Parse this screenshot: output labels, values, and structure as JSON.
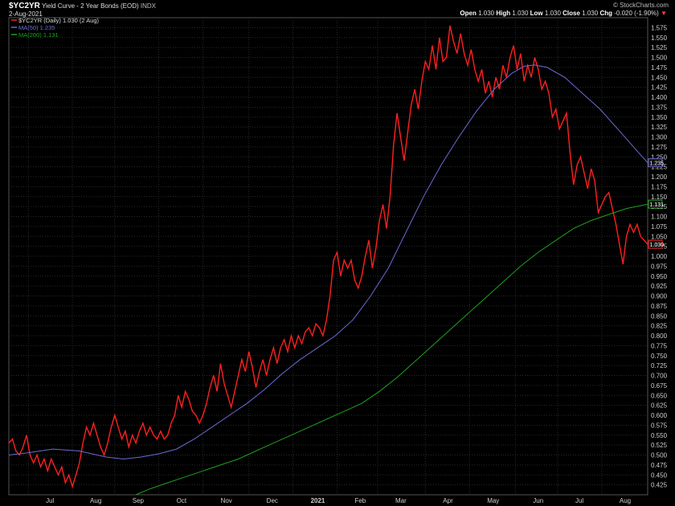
{
  "header": {
    "ticker": "$YC2YR",
    "title": "Yield Curve - 2 Year Bonds (EOD)",
    "exchange": "INDX",
    "date": "2-Aug-2021",
    "credit": "© StockCharts.com",
    "quote": {
      "open_label": "Open",
      "open": "1.030",
      "high_label": "High",
      "high": "1.030",
      "low_label": "Low",
      "low": "1.030",
      "close_label": "Close",
      "close": "1.030",
      "chg_label": "Chg",
      "chg": "-0.020 (-1.90%)",
      "chg_marker": "▼"
    }
  },
  "colors": {
    "price": "#ff2020",
    "ma50": "#6b6bd6",
    "ma200": "#1fa01f",
    "grid": "#2a2a2a",
    "axis_text": "#cfcfcf",
    "chg_negative": "#ff4040"
  },
  "chart_data": {
    "type": "line",
    "ylim": [
      0.4,
      1.6
    ],
    "x_ticks": [
      "Jul",
      "Aug",
      "Sep",
      "Oct",
      "Nov",
      "Dec",
      "2021",
      "Feb",
      "Mar",
      "Apr",
      "May",
      "Jun",
      "Jul",
      "Aug"
    ],
    "y_ticks": [
      "0.425",
      "0.450",
      "0.475",
      "0.500",
      "0.525",
      "0.550",
      "0.575",
      "0.600",
      "0.625",
      "0.650",
      "0.675",
      "0.700",
      "0.725",
      "0.750",
      "0.775",
      "0.800",
      "0.825",
      "0.850",
      "0.875",
      "0.900",
      "0.925",
      "0.950",
      "0.975",
      "1.000",
      "1.025",
      "1.050",
      "1.075",
      "1.100",
      "1.125",
      "1.150",
      "1.175",
      "1.200",
      "1.225",
      "1.250",
      "1.275",
      "1.300",
      "1.325",
      "1.350",
      "1.375",
      "1.400",
      "1.425",
      "1.450",
      "1.475",
      "1.500",
      "1.525",
      "1.550",
      "1.575"
    ],
    "series": [
      {
        "name": "$YC2YR (Daily) 1.030 (2 Aug)",
        "last_label": "1.030",
        "points": [
          [
            0,
            0.53
          ],
          [
            2,
            0.54
          ],
          [
            4,
            0.51
          ],
          [
            6,
            0.5
          ],
          [
            8,
            0.52
          ],
          [
            10,
            0.55
          ],
          [
            12,
            0.5
          ],
          [
            14,
            0.48
          ],
          [
            16,
            0.5
          ],
          [
            18,
            0.47
          ],
          [
            20,
            0.49
          ],
          [
            22,
            0.46
          ],
          [
            24,
            0.49
          ],
          [
            26,
            0.47
          ],
          [
            28,
            0.45
          ],
          [
            30,
            0.47
          ],
          [
            32,
            0.43
          ],
          [
            34,
            0.45
          ],
          [
            36,
            0.42
          ],
          [
            38,
            0.45
          ],
          [
            40,
            0.48
          ],
          [
            42,
            0.53
          ],
          [
            44,
            0.57
          ],
          [
            46,
            0.55
          ],
          [
            48,
            0.58
          ],
          [
            50,
            0.55
          ],
          [
            52,
            0.52
          ],
          [
            54,
            0.5
          ],
          [
            56,
            0.53
          ],
          [
            58,
            0.57
          ],
          [
            60,
            0.6
          ],
          [
            62,
            0.57
          ],
          [
            64,
            0.54
          ],
          [
            66,
            0.56
          ],
          [
            68,
            0.52
          ],
          [
            70,
            0.55
          ],
          [
            72,
            0.53
          ],
          [
            74,
            0.56
          ],
          [
            76,
            0.58
          ],
          [
            78,
            0.55
          ],
          [
            80,
            0.57
          ],
          [
            82,
            0.55
          ],
          [
            84,
            0.54
          ],
          [
            86,
            0.56
          ],
          [
            88,
            0.54
          ],
          [
            90,
            0.55
          ],
          [
            92,
            0.58
          ],
          [
            94,
            0.6
          ],
          [
            96,
            0.65
          ],
          [
            98,
            0.62
          ],
          [
            100,
            0.66
          ],
          [
            102,
            0.64
          ],
          [
            104,
            0.61
          ],
          [
            106,
            0.6
          ],
          [
            108,
            0.58
          ],
          [
            110,
            0.6
          ],
          [
            112,
            0.63
          ],
          [
            114,
            0.67
          ],
          [
            116,
            0.7
          ],
          [
            118,
            0.66
          ],
          [
            120,
            0.73
          ],
          [
            122,
            0.68
          ],
          [
            124,
            0.65
          ],
          [
            126,
            0.62
          ],
          [
            128,
            0.66
          ],
          [
            130,
            0.7
          ],
          [
            132,
            0.74
          ],
          [
            134,
            0.71
          ],
          [
            136,
            0.76
          ],
          [
            138,
            0.72
          ],
          [
            140,
            0.67
          ],
          [
            142,
            0.71
          ],
          [
            144,
            0.74
          ],
          [
            146,
            0.7
          ],
          [
            148,
            0.74
          ],
          [
            150,
            0.77
          ],
          [
            152,
            0.73
          ],
          [
            154,
            0.77
          ],
          [
            156,
            0.79
          ],
          [
            158,
            0.76
          ],
          [
            160,
            0.8
          ],
          [
            162,
            0.77
          ],
          [
            164,
            0.8
          ],
          [
            166,
            0.78
          ],
          [
            168,
            0.81
          ],
          [
            170,
            0.82
          ],
          [
            172,
            0.8
          ],
          [
            174,
            0.83
          ],
          [
            176,
            0.82
          ],
          [
            178,
            0.8
          ],
          [
            180,
            0.84
          ],
          [
            182,
            0.9
          ],
          [
            184,
            0.99
          ],
          [
            186,
            1.01
          ],
          [
            188,
            0.95
          ],
          [
            190,
            0.99
          ],
          [
            192,
            0.97
          ],
          [
            194,
            0.99
          ],
          [
            196,
            0.94
          ],
          [
            198,
            0.92
          ],
          [
            200,
            0.95
          ],
          [
            202,
            1.0
          ],
          [
            204,
            1.04
          ],
          [
            206,
            0.97
          ],
          [
            208,
            1.02
          ],
          [
            210,
            1.09
          ],
          [
            212,
            1.13
          ],
          [
            214,
            1.07
          ],
          [
            216,
            1.15
          ],
          [
            218,
            1.28
          ],
          [
            220,
            1.36
          ],
          [
            222,
            1.3
          ],
          [
            224,
            1.24
          ],
          [
            226,
            1.31
          ],
          [
            228,
            1.38
          ],
          [
            230,
            1.42
          ],
          [
            232,
            1.37
          ],
          [
            234,
            1.44
          ],
          [
            236,
            1.49
          ],
          [
            238,
            1.47
          ],
          [
            240,
            1.53
          ],
          [
            242,
            1.47
          ],
          [
            244,
            1.55
          ],
          [
            246,
            1.49
          ],
          [
            248,
            1.5
          ],
          [
            250,
            1.58
          ],
          [
            252,
            1.54
          ],
          [
            254,
            1.51
          ],
          [
            256,
            1.56
          ],
          [
            258,
            1.51
          ],
          [
            260,
            1.48
          ],
          [
            262,
            1.52
          ],
          [
            264,
            1.47
          ],
          [
            266,
            1.44
          ],
          [
            268,
            1.47
          ],
          [
            270,
            1.41
          ],
          [
            272,
            1.44
          ],
          [
            274,
            1.4
          ],
          [
            276,
            1.45
          ],
          [
            278,
            1.42
          ],
          [
            280,
            1.48
          ],
          [
            282,
            1.45
          ],
          [
            284,
            1.5
          ],
          [
            286,
            1.53
          ],
          [
            288,
            1.47
          ],
          [
            290,
            1.51
          ],
          [
            292,
            1.44
          ],
          [
            294,
            1.48
          ],
          [
            296,
            1.45
          ],
          [
            298,
            1.5
          ],
          [
            300,
            1.47
          ],
          [
            302,
            1.42
          ],
          [
            304,
            1.44
          ],
          [
            306,
            1.41
          ],
          [
            308,
            1.35
          ],
          [
            310,
            1.37
          ],
          [
            312,
            1.32
          ],
          [
            314,
            1.34
          ],
          [
            316,
            1.36
          ],
          [
            318,
            1.26
          ],
          [
            320,
            1.18
          ],
          [
            322,
            1.23
          ],
          [
            324,
            1.25
          ],
          [
            326,
            1.21
          ],
          [
            328,
            1.17
          ],
          [
            330,
            1.22
          ],
          [
            332,
            1.19
          ],
          [
            334,
            1.11
          ],
          [
            336,
            1.13
          ],
          [
            338,
            1.15
          ],
          [
            340,
            1.16
          ],
          [
            342,
            1.12
          ],
          [
            344,
            1.08
          ],
          [
            346,
            1.03
          ],
          [
            348,
            0.98
          ],
          [
            350,
            1.05
          ],
          [
            352,
            1.08
          ],
          [
            354,
            1.06
          ],
          [
            356,
            1.08
          ],
          [
            358,
            1.05
          ],
          [
            360,
            1.04
          ],
          [
            362,
            1.03
          ]
        ]
      },
      {
        "name": "MA(50) 1.235",
        "last_label": "1.235",
        "points": [
          [
            0,
            0.5
          ],
          [
            10,
            0.505
          ],
          [
            25,
            0.515
          ],
          [
            40,
            0.51
          ],
          [
            55,
            0.495
          ],
          [
            65,
            0.49
          ],
          [
            75,
            0.495
          ],
          [
            85,
            0.503
          ],
          [
            95,
            0.515
          ],
          [
            105,
            0.54
          ],
          [
            115,
            0.57
          ],
          [
            125,
            0.6
          ],
          [
            135,
            0.63
          ],
          [
            145,
            0.665
          ],
          [
            155,
            0.705
          ],
          [
            165,
            0.74
          ],
          [
            175,
            0.77
          ],
          [
            185,
            0.8
          ],
          [
            195,
            0.84
          ],
          [
            205,
            0.9
          ],
          [
            215,
            0.97
          ],
          [
            225,
            1.06
          ],
          [
            235,
            1.15
          ],
          [
            245,
            1.23
          ],
          [
            255,
            1.3
          ],
          [
            265,
            1.365
          ],
          [
            275,
            1.42
          ],
          [
            285,
            1.46
          ],
          [
            292,
            1.478
          ],
          [
            298,
            1.481
          ],
          [
            305,
            1.475
          ],
          [
            315,
            1.45
          ],
          [
            325,
            1.41
          ],
          [
            335,
            1.37
          ],
          [
            345,
            1.32
          ],
          [
            355,
            1.27
          ],
          [
            362,
            1.235
          ]
        ]
      },
      {
        "name": "MA(200) 1.131",
        "last_label": "1.131",
        "points": [
          [
            72,
            0.4
          ],
          [
            80,
            0.415
          ],
          [
            90,
            0.43
          ],
          [
            100,
            0.445
          ],
          [
            110,
            0.46
          ],
          [
            120,
            0.475
          ],
          [
            130,
            0.49
          ],
          [
            140,
            0.51
          ],
          [
            150,
            0.53
          ],
          [
            160,
            0.55
          ],
          [
            170,
            0.57
          ],
          [
            180,
            0.59
          ],
          [
            190,
            0.61
          ],
          [
            200,
            0.63
          ],
          [
            210,
            0.66
          ],
          [
            220,
            0.695
          ],
          [
            230,
            0.735
          ],
          [
            240,
            0.775
          ],
          [
            250,
            0.815
          ],
          [
            260,
            0.855
          ],
          [
            270,
            0.895
          ],
          [
            280,
            0.935
          ],
          [
            290,
            0.975
          ],
          [
            300,
            1.01
          ],
          [
            310,
            1.04
          ],
          [
            320,
            1.07
          ],
          [
            330,
            1.09
          ],
          [
            340,
            1.105
          ],
          [
            350,
            1.12
          ],
          [
            362,
            1.131
          ]
        ]
      }
    ]
  }
}
